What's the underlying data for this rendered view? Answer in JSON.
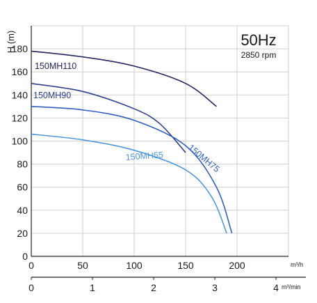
{
  "chart_data": {
    "type": "line",
    "title": "50Hz",
    "subtitle": "2850 rpm",
    "ylabel": "H (m)",
    "xlabel": "m³/h",
    "xlabel2": "m³/min",
    "xlim": [
      0,
      250
    ],
    "ylim": [
      0,
      200
    ],
    "x2lim": [
      0,
      4.5
    ],
    "xticks": [
      0,
      50,
      100,
      150,
      200
    ],
    "yticks": [
      0,
      20,
      40,
      60,
      80,
      100,
      120,
      140,
      160,
      180
    ],
    "x2ticks": [
      0,
      1,
      2,
      3,
      4
    ],
    "grid": true,
    "series": [
      {
        "name": "150MH110",
        "color": "#22265e",
        "x": [
          0,
          50,
          100,
          150,
          180
        ],
        "y": [
          178,
          173,
          165,
          150,
          130
        ]
      },
      {
        "name": "150MH90",
        "color": "#2c3f8c",
        "x": [
          0,
          50,
          100,
          125,
          150
        ],
        "y": [
          150,
          143,
          128,
          115,
          90
        ]
      },
      {
        "name": "150MH75",
        "color": "#2f5ec0",
        "x": [
          0,
          50,
          100,
          150,
          180,
          195
        ],
        "y": [
          130,
          127,
          118,
          96,
          60,
          20
        ]
      },
      {
        "name": "150MH55",
        "color": "#4f97d8",
        "x": [
          0,
          50,
          100,
          150,
          175,
          190
        ],
        "y": [
          106,
          101,
          92,
          75,
          52,
          20
        ]
      }
    ]
  }
}
